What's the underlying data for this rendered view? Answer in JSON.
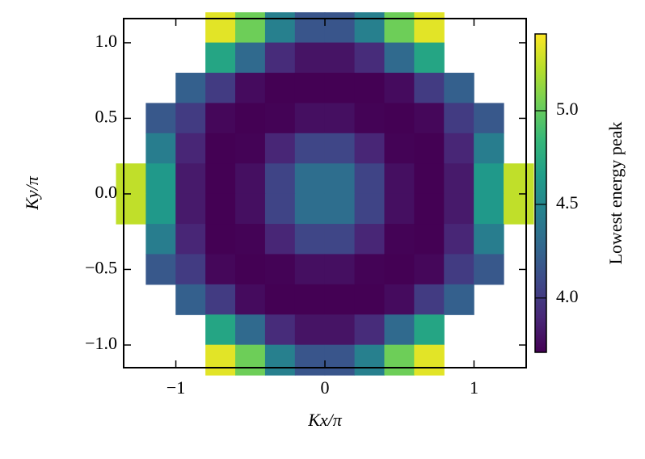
{
  "chart_data": {
    "type": "heatmap",
    "xlabel": "Kx/π",
    "ylabel": "Ky/π",
    "colorbar_label": "Lowest energy peak",
    "colormap": "viridis",
    "x": [
      -1.3,
      -1.1,
      -0.9,
      -0.7,
      -0.5,
      -0.3,
      -0.1,
      0.1,
      0.3,
      0.5,
      0.7,
      0.9,
      1.1,
      1.3
    ],
    "y": [
      1.1,
      0.9,
      0.7,
      0.5,
      0.3,
      0.1,
      -0.1,
      -0.3,
      -0.5,
      -0.7,
      -0.9,
      -1.1
    ],
    "z": [
      [
        null,
        null,
        null,
        5.34,
        5.03,
        4.45,
        4.16,
        4.16,
        4.45,
        5.03,
        5.34,
        null,
        null,
        null
      ],
      [
        null,
        null,
        null,
        4.71,
        4.29,
        3.92,
        3.8,
        3.8,
        3.92,
        4.29,
        4.71,
        null,
        null,
        null
      ],
      [
        null,
        null,
        4.23,
        4.01,
        3.76,
        3.7,
        3.7,
        3.7,
        3.7,
        3.76,
        4.01,
        4.23,
        null,
        null
      ],
      [
        null,
        4.18,
        4.01,
        3.74,
        3.7,
        3.72,
        3.78,
        3.78,
        3.72,
        3.7,
        3.74,
        4.01,
        4.18,
        null
      ],
      [
        null,
        4.43,
        3.89,
        3.7,
        3.72,
        3.89,
        4.07,
        4.07,
        3.89,
        3.72,
        3.7,
        3.89,
        4.43,
        null
      ],
      [
        5.25,
        4.62,
        3.83,
        3.7,
        3.78,
        4.06,
        4.32,
        4.32,
        4.06,
        3.78,
        3.7,
        3.83,
        4.62,
        5.25
      ],
      [
        5.25,
        4.62,
        3.83,
        3.7,
        3.78,
        4.06,
        4.32,
        4.32,
        4.06,
        3.78,
        3.7,
        3.83,
        4.62,
        5.25
      ],
      [
        null,
        4.43,
        3.89,
        3.7,
        3.72,
        3.89,
        4.07,
        4.07,
        3.89,
        3.72,
        3.7,
        3.89,
        4.43,
        null
      ],
      [
        null,
        4.18,
        4.01,
        3.74,
        3.7,
        3.72,
        3.78,
        3.78,
        3.72,
        3.7,
        3.74,
        4.01,
        4.18,
        null
      ],
      [
        null,
        null,
        4.23,
        4.01,
        3.76,
        3.7,
        3.7,
        3.7,
        3.7,
        3.76,
        4.01,
        4.23,
        null,
        null
      ],
      [
        null,
        null,
        null,
        4.71,
        4.29,
        3.92,
        3.8,
        3.8,
        3.92,
        4.29,
        4.71,
        null,
        null,
        null
      ],
      [
        null,
        null,
        null,
        5.34,
        5.03,
        4.45,
        4.16,
        4.16,
        4.45,
        5.03,
        5.34,
        null,
        null,
        null
      ]
    ],
    "xlim": [
      -1.35,
      1.35
    ],
    "ylim": [
      -1.15,
      1.16
    ],
    "xticks": [
      {
        "value": -1,
        "label": "−1"
      },
      0,
      1
    ],
    "yticks": [
      {
        "value": -1,
        "label": "−1.0"
      },
      {
        "value": -0.5,
        "label": "−0.5"
      },
      {
        "value": 0,
        "label": "0.0"
      },
      0.5,
      {
        "value": 1,
        "label": "1.0"
      }
    ],
    "clim": [
      3.71,
      5.41
    ],
    "cticks": [
      {
        "value": 4,
        "label": "4.0"
      },
      4.5,
      {
        "value": 5,
        "label": "5.0"
      }
    ]
  }
}
